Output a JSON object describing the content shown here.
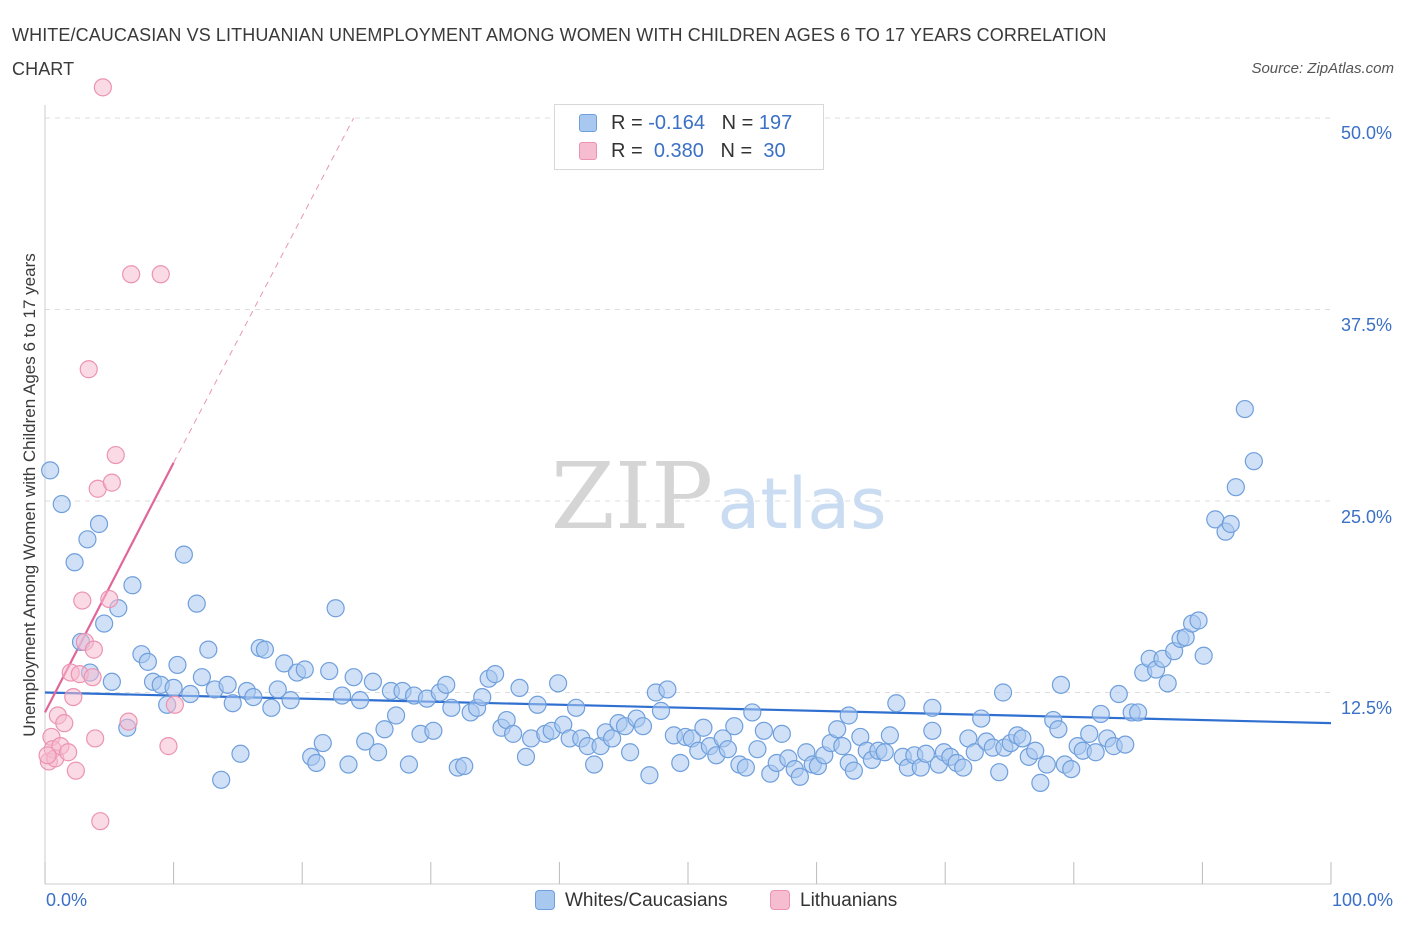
{
  "title": "WHITE/CAUCASIAN VS LITHUANIAN UNEMPLOYMENT AMONG WOMEN WITH CHILDREN AGES 6 TO 17 YEARS CORRELATION CHART",
  "source": "Source: ZipAtlas.com",
  "watermark": {
    "zip": "ZIP",
    "atlas": "atlas"
  },
  "legend": {
    "whites": {
      "r_label": "R =",
      "r_value": "-0.164",
      "n_label": "N =",
      "n_value": "197",
      "name": "Whites/Caucasians"
    },
    "lithuanians": {
      "r_label": "R =",
      "r_value": "0.380",
      "n_label": "N =",
      "n_value": "30",
      "name": "Lithuanians"
    }
  },
  "colors": {
    "blue_fill": "#a9c8f0",
    "blue_stroke": "#6f9fdc",
    "blue_line": "#2f6fd0",
    "pink_fill": "#f6bcd0",
    "pink_stroke": "#ec93b2",
    "pink_line": "#e0669a",
    "grid": "#dddddd",
    "axis_text": "#3a70c6"
  },
  "chart_data": {
    "type": "scatter",
    "xlabel": "",
    "ylabel": "Unemployment Among Women with Children Ages 6 to 17 years",
    "xlim": [
      0,
      100
    ],
    "ylim": [
      0,
      50
    ],
    "x_tick_labels": [
      "0.0%",
      "100.0%"
    ],
    "y_ticks": [
      12.5,
      25.0,
      37.5,
      50.0
    ],
    "y_tick_labels": [
      "12.5%",
      "25.0%",
      "37.5%",
      "50.0%"
    ],
    "series": [
      {
        "name": "Whites/Caucasians",
        "trend": {
          "x": [
            0,
            100
          ],
          "y": [
            12.5,
            10.5
          ]
        },
        "points": [
          [
            0.4,
            27.0
          ],
          [
            1.3,
            24.8
          ],
          [
            2.3,
            21.0
          ],
          [
            2.8,
            15.8
          ],
          [
            3.3,
            22.5
          ],
          [
            3.5,
            13.8
          ],
          [
            4.2,
            23.5
          ],
          [
            4.6,
            17.0
          ],
          [
            5.2,
            13.2
          ],
          [
            5.7,
            18.0
          ],
          [
            6.4,
            10.2
          ],
          [
            6.8,
            19.5
          ],
          [
            7.5,
            15.0
          ],
          [
            8.0,
            14.5
          ],
          [
            8.4,
            13.2
          ],
          [
            9.0,
            13.0
          ],
          [
            9.5,
            11.7
          ],
          [
            10.0,
            12.8
          ],
          [
            10.3,
            14.3
          ],
          [
            10.8,
            21.5
          ],
          [
            11.3,
            12.4
          ],
          [
            11.8,
            18.3
          ],
          [
            12.2,
            13.5
          ],
          [
            12.7,
            15.3
          ],
          [
            13.2,
            12.7
          ],
          [
            13.7,
            6.8
          ],
          [
            14.2,
            13.0
          ],
          [
            14.6,
            11.8
          ],
          [
            15.2,
            8.5
          ],
          [
            15.7,
            12.6
          ],
          [
            16.2,
            12.2
          ],
          [
            16.7,
            15.4
          ],
          [
            17.1,
            15.3
          ],
          [
            17.6,
            11.5
          ],
          [
            18.1,
            12.7
          ],
          [
            18.6,
            14.4
          ],
          [
            19.1,
            12.0
          ],
          [
            19.6,
            13.8
          ],
          [
            20.2,
            14.0
          ],
          [
            20.7,
            8.3
          ],
          [
            21.1,
            7.9
          ],
          [
            21.6,
            9.2
          ],
          [
            22.1,
            13.9
          ],
          [
            22.6,
            18.0
          ],
          [
            23.1,
            12.3
          ],
          [
            23.6,
            7.8
          ],
          [
            24.0,
            13.5
          ],
          [
            24.5,
            12.0
          ],
          [
            24.9,
            9.3
          ],
          [
            25.5,
            13.2
          ],
          [
            25.9,
            8.6
          ],
          [
            26.4,
            10.1
          ],
          [
            26.9,
            12.6
          ],
          [
            27.3,
            11.0
          ],
          [
            27.8,
            12.6
          ],
          [
            28.3,
            7.8
          ],
          [
            28.7,
            12.3
          ],
          [
            29.2,
            9.8
          ],
          [
            29.7,
            12.1
          ],
          [
            30.2,
            10.0
          ],
          [
            30.7,
            12.5
          ],
          [
            31.2,
            13.0
          ],
          [
            31.6,
            11.5
          ],
          [
            32.1,
            7.6
          ],
          [
            32.6,
            7.7
          ],
          [
            33.1,
            11.2
          ],
          [
            33.6,
            11.5
          ],
          [
            34.0,
            12.2
          ],
          [
            34.5,
            13.4
          ],
          [
            35.0,
            13.7
          ],
          [
            35.5,
            10.2
          ],
          [
            35.9,
            10.7
          ],
          [
            36.4,
            9.8
          ],
          [
            36.9,
            12.8
          ],
          [
            37.4,
            8.3
          ],
          [
            37.8,
            9.5
          ],
          [
            38.3,
            11.7
          ],
          [
            38.9,
            9.8
          ],
          [
            39.4,
            10.0
          ],
          [
            39.9,
            13.1
          ],
          [
            40.3,
            10.4
          ],
          [
            40.8,
            9.5
          ],
          [
            41.3,
            11.5
          ],
          [
            41.7,
            9.5
          ],
          [
            42.2,
            9.0
          ],
          [
            42.7,
            7.8
          ],
          [
            43.2,
            9.0
          ],
          [
            43.6,
            9.9
          ],
          [
            44.1,
            9.5
          ],
          [
            44.6,
            10.5
          ],
          [
            45.1,
            10.3
          ],
          [
            45.5,
            8.6
          ],
          [
            46.0,
            10.8
          ],
          [
            46.5,
            10.3
          ],
          [
            47.0,
            7.1
          ],
          [
            47.5,
            12.5
          ],
          [
            47.9,
            11.3
          ],
          [
            48.4,
            12.7
          ],
          [
            48.9,
            9.7
          ],
          [
            49.4,
            7.9
          ],
          [
            49.8,
            9.6
          ],
          [
            50.3,
            9.5
          ],
          [
            50.8,
            8.7
          ],
          [
            51.2,
            10.2
          ],
          [
            51.7,
            9.0
          ],
          [
            52.2,
            8.4
          ],
          [
            52.7,
            9.5
          ],
          [
            53.1,
            8.8
          ],
          [
            53.6,
            10.3
          ],
          [
            54.0,
            7.8
          ],
          [
            54.5,
            7.6
          ],
          [
            55.0,
            11.2
          ],
          [
            55.4,
            8.8
          ],
          [
            55.9,
            10.0
          ],
          [
            56.4,
            7.2
          ],
          [
            56.9,
            7.9
          ],
          [
            57.3,
            9.8
          ],
          [
            57.8,
            8.2
          ],
          [
            58.3,
            7.5
          ],
          [
            58.7,
            7.0
          ],
          [
            59.2,
            8.6
          ],
          [
            59.7,
            7.8
          ],
          [
            60.1,
            7.7
          ],
          [
            60.6,
            8.4
          ],
          [
            61.1,
            9.2
          ],
          [
            61.6,
            10.1
          ],
          [
            62.0,
            9.0
          ],
          [
            62.5,
            7.9
          ],
          [
            62.9,
            7.4
          ],
          [
            63.4,
            9.6
          ],
          [
            63.9,
            8.7
          ],
          [
            64.3,
            8.1
          ],
          [
            64.8,
            8.7
          ],
          [
            65.3,
            8.6
          ],
          [
            65.7,
            9.7
          ],
          [
            66.2,
            11.8
          ],
          [
            66.7,
            8.3
          ],
          [
            67.1,
            7.6
          ],
          [
            67.6,
            8.4
          ],
          [
            68.1,
            7.6
          ],
          [
            68.5,
            8.5
          ],
          [
            69.0,
            10.0
          ],
          [
            69.5,
            7.8
          ],
          [
            69.9,
            8.6
          ],
          [
            70.4,
            8.3
          ],
          [
            70.9,
            7.9
          ],
          [
            71.4,
            7.6
          ],
          [
            71.8,
            9.5
          ],
          [
            72.3,
            8.6
          ],
          [
            72.8,
            10.8
          ],
          [
            73.2,
            9.3
          ],
          [
            73.7,
            8.9
          ],
          [
            74.2,
            7.3
          ],
          [
            74.6,
            8.9
          ],
          [
            75.1,
            9.2
          ],
          [
            75.6,
            9.7
          ],
          [
            76.0,
            9.5
          ],
          [
            76.5,
            8.3
          ],
          [
            77.0,
            8.7
          ],
          [
            77.4,
            6.6
          ],
          [
            77.9,
            7.8
          ],
          [
            78.4,
            10.7
          ],
          [
            78.8,
            10.1
          ],
          [
            79.3,
            7.8
          ],
          [
            79.8,
            7.5
          ],
          [
            80.3,
            9.0
          ],
          [
            80.7,
            8.7
          ],
          [
            81.2,
            9.8
          ],
          [
            81.7,
            8.6
          ],
          [
            82.1,
            11.1
          ],
          [
            82.6,
            9.5
          ],
          [
            83.1,
            9.0
          ],
          [
            83.5,
            12.4
          ],
          [
            84.0,
            9.1
          ],
          [
            84.5,
            11.2
          ],
          [
            85.0,
            11.2
          ],
          [
            85.4,
            13.8
          ],
          [
            85.9,
            14.7
          ],
          [
            86.4,
            14.0
          ],
          [
            86.9,
            14.7
          ],
          [
            87.3,
            13.1
          ],
          [
            87.8,
            15.2
          ],
          [
            88.3,
            16.0
          ],
          [
            88.7,
            16.1
          ],
          [
            89.2,
            17.0
          ],
          [
            89.7,
            17.2
          ],
          [
            90.1,
            14.9
          ],
          [
            91.0,
            23.8
          ],
          [
            91.8,
            23.0
          ],
          [
            92.2,
            23.5
          ],
          [
            92.6,
            25.9
          ],
          [
            93.3,
            31.0
          ],
          [
            94.0,
            27.6
          ],
          [
            79.0,
            13.0
          ],
          [
            74.5,
            12.5
          ],
          [
            69.0,
            11.5
          ],
          [
            62.5,
            11.0
          ]
        ]
      },
      {
        "name": "Lithuanians",
        "trend": {
          "x": [
            0,
            10
          ],
          "y": [
            11.2,
            27.5
          ]
        },
        "trend_dashed": {
          "x": [
            10,
            24
          ],
          "y": [
            27.5,
            50.0
          ]
        },
        "points": [
          [
            0.3,
            8.0
          ],
          [
            0.5,
            9.6
          ],
          [
            0.6,
            8.8
          ],
          [
            0.8,
            8.2
          ],
          [
            1.0,
            11.0
          ],
          [
            1.2,
            9.0
          ],
          [
            1.5,
            10.5
          ],
          [
            1.8,
            8.6
          ],
          [
            2.0,
            13.8
          ],
          [
            2.2,
            12.2
          ],
          [
            2.4,
            7.4
          ],
          [
            2.7,
            13.7
          ],
          [
            2.9,
            18.5
          ],
          [
            3.1,
            15.8
          ],
          [
            3.4,
            33.6
          ],
          [
            3.7,
            13.5
          ],
          [
            3.8,
            15.3
          ],
          [
            3.9,
            9.5
          ],
          [
            4.1,
            25.8
          ],
          [
            4.3,
            4.1
          ],
          [
            4.5,
            52.0
          ],
          [
            5.0,
            18.6
          ],
          [
            5.2,
            26.2
          ],
          [
            5.5,
            28.0
          ],
          [
            6.5,
            10.6
          ],
          [
            6.7,
            39.8
          ],
          [
            9.0,
            39.8
          ],
          [
            9.6,
            9.0
          ],
          [
            10.1,
            11.7
          ],
          [
            0.2,
            8.4
          ]
        ]
      }
    ]
  }
}
